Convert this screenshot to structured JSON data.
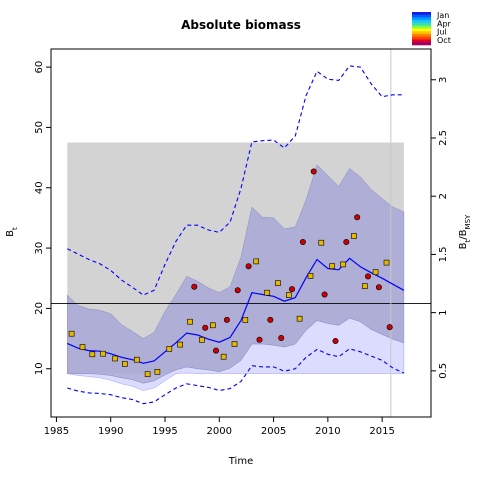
{
  "chart_data": {
    "type": "line",
    "title": "Absolute biomass",
    "xlabel": "Time",
    "ylabel": {
      "main": "B",
      "sub": "t"
    },
    "ylabel_right": {
      "b": "B",
      "bsub": "t",
      "sep": "/",
      "m": "B",
      "msub": "MSY"
    },
    "xlim": [
      1984.5,
      2019.5
    ],
    "ylim": [
      2,
      63
    ],
    "xticks": [
      1985,
      1990,
      1995,
      2000,
      2005,
      2010,
      2015
    ],
    "yticks": [
      10,
      20,
      30,
      40,
      50,
      60
    ],
    "right_ratio_per_unit": 19.3,
    "yticks_right": [
      0.5,
      1,
      1.5,
      2,
      2.5,
      3
    ],
    "bmsy_line": 20.8,
    "reference_vline": 2015.8,
    "gray_box": {
      "x": [
        1986,
        2017
      ],
      "y": [
        9.2,
        47.5
      ]
    },
    "legend": {
      "labels": [
        "Jan",
        "Apr",
        "Jul",
        "Oct"
      ],
      "colors": [
        "#1a1ae6",
        "#0060ff",
        "#00a0ff",
        "#20c8ff",
        "#40e0a0",
        "#80ff40",
        "#ffff00",
        "#ffc000",
        "#ff8000",
        "#ff4000",
        "#e00030",
        "#a00060"
      ]
    },
    "colors": {
      "median": "#0000ff",
      "ci_inner": "#a7a7d6",
      "ci_outer": "#dcdcff",
      "dashed": "#0000ff",
      "gray": "#d3d3d3",
      "square": "#e8b800",
      "circle": "#cc0000"
    },
    "series": [
      {
        "key": "median",
        "x": [
          1986,
          1987,
          1988,
          1989,
          1990,
          1991,
          1992,
          1993,
          1994,
          1995,
          1996,
          1997,
          1998,
          1999,
          2000,
          2001,
          2002,
          2003,
          2004,
          2005,
          2006,
          2007,
          2008,
          2009,
          2010,
          2011,
          2012,
          2013,
          2014,
          2015,
          2016,
          2017
        ],
        "values": [
          14.2,
          13.4,
          13.0,
          12.9,
          12.5,
          11.9,
          11.5,
          10.9,
          11.3,
          12.8,
          14.3,
          15.9,
          15.6,
          14.9,
          14.4,
          15.2,
          18.0,
          22.6,
          22.3,
          22.0,
          21.2,
          21.8,
          25.1,
          28.1,
          26.6,
          26.4,
          28.3,
          26.9,
          25.9,
          25.0,
          24.0,
          23.0
        ]
      },
      {
        "key": "ci_inner_upper",
        "x": [
          1986,
          1987,
          1988,
          1989,
          1990,
          1991,
          1992,
          1993,
          1994,
          1995,
          1996,
          1997,
          1998,
          1999,
          2000,
          2001,
          2002,
          2003,
          2004,
          2005,
          2006,
          2007,
          2008,
          2009,
          2010,
          2011,
          2012,
          2013,
          2014,
          2015,
          2016,
          2017
        ],
        "values": [
          22.2,
          20.5,
          19.9,
          19.7,
          19.1,
          17.3,
          16.2,
          15.0,
          16.0,
          19.5,
          22.3,
          25.3,
          24.5,
          23.4,
          22.6,
          23.6,
          28.5,
          36.8,
          35.1,
          35.0,
          33.2,
          33.5,
          38.0,
          43.8,
          42.0,
          40.2,
          43.2,
          41.8,
          39.7,
          38.2,
          36.8,
          36.0
        ]
      },
      {
        "key": "ci_inner_lower",
        "x": [
          1986,
          1987,
          1988,
          1989,
          1990,
          1991,
          1992,
          1993,
          1994,
          1995,
          1996,
          1997,
          1998,
          1999,
          2000,
          2001,
          2002,
          2003,
          2004,
          2005,
          2006,
          2007,
          2008,
          2009,
          2010,
          2011,
          2012,
          2013,
          2014,
          2015,
          2016,
          2017
        ],
        "values": [
          9.2,
          9.2,
          9.2,
          9.1,
          8.9,
          8.5,
          8.2,
          7.6,
          8.0,
          9.0,
          9.8,
          10.3,
          10.0,
          9.8,
          9.5,
          10.1,
          11.4,
          14.1,
          14.1,
          13.9,
          13.6,
          14.1,
          16.4,
          18.0,
          17.5,
          17.2,
          18.4,
          17.8,
          16.5,
          15.7,
          14.9,
          14.3
        ]
      },
      {
        "key": "ci_outer_lower",
        "x": [
          1986,
          1987,
          1988,
          1989,
          1990,
          1991,
          1992,
          1993,
          1994,
          1995,
          1996,
          1997,
          1998,
          1999,
          2000,
          2001,
          2002,
          2003,
          2004,
          2005,
          2006,
          2007,
          2008,
          2009,
          2010,
          2011,
          2012,
          2013,
          2014,
          2015,
          2016,
          2017
        ],
        "values": [
          9.2,
          8.9,
          8.7,
          8.5,
          8.1,
          7.5,
          7.1,
          6.4,
          6.8,
          8.0,
          9.2,
          9.3,
          9.2,
          9.2,
          9.2,
          9.2,
          9.2,
          9.2,
          9.2,
          9.2,
          9.2,
          9.2,
          9.2,
          9.2,
          9.2,
          9.2,
          9.2,
          9.2,
          9.2,
          9.2,
          9.2,
          9.2
        ]
      },
      {
        "key": "dashed_upper",
        "x": [
          1986,
          1987,
          1988,
          1989,
          1990,
          1991,
          1992,
          1993,
          1994,
          1995,
          1996,
          1997,
          1998,
          1999,
          2000,
          2001,
          2002,
          2003,
          2004,
          2005,
          2006,
          2007,
          2008,
          2009,
          2010,
          2011,
          2012,
          2013,
          2014,
          2015,
          2016,
          2017
        ],
        "values": [
          29.9,
          29.0,
          28.1,
          27.4,
          26.3,
          24.7,
          23.5,
          22.2,
          23.0,
          27.3,
          31.1,
          33.8,
          33.8,
          33.0,
          32.6,
          34.3,
          39.9,
          47.6,
          47.8,
          47.9,
          46.6,
          48.6,
          55.3,
          59.3,
          58.0,
          57.8,
          60.2,
          60.0,
          57.2,
          55.1,
          55.4,
          55.4
        ]
      },
      {
        "key": "dashed_lower",
        "x": [
          1986,
          1987,
          1988,
          1989,
          1990,
          1991,
          1992,
          1993,
          1994,
          1995,
          1996,
          1997,
          1998,
          1999,
          2000,
          2001,
          2002,
          2003,
          2004,
          2005,
          2006,
          2007,
          2008,
          2009,
          2010,
          2011,
          2012,
          2013,
          2014,
          2015,
          2016,
          2017
        ],
        "values": [
          6.8,
          6.3,
          6.0,
          5.9,
          5.7,
          5.2,
          4.9,
          4.2,
          4.5,
          5.7,
          6.8,
          7.5,
          7.2,
          6.9,
          6.4,
          6.7,
          7.9,
          10.5,
          10.3,
          10.3,
          9.6,
          10.0,
          11.9,
          13.2,
          12.4,
          12.0,
          13.3,
          12.8,
          12.1,
          11.4,
          10.1,
          9.3
        ]
      }
    ],
    "observations": [
      {
        "name": "squares",
        "x": [
          1986.4,
          1987.4,
          1988.3,
          1989.3,
          1990.4,
          1991.3,
          1992.4,
          1993.4,
          1994.3,
          1995.4,
          1996.4,
          1997.3,
          1998.4,
          1999.4,
          2000.4,
          2001.4,
          2002.4,
          2003.4,
          2004.4,
          2005.4,
          2006.4,
          2007.4,
          2008.4,
          2009.4,
          2010.4,
          2011.4,
          2012.4,
          2013.4,
          2014.4,
          2015.4
        ],
        "values": [
          15.8,
          13.6,
          12.4,
          12.5,
          11.7,
          10.8,
          11.5,
          9.1,
          9.5,
          13.3,
          14.0,
          17.8,
          14.8,
          17.2,
          12.0,
          14.1,
          18.1,
          27.8,
          22.6,
          24.2,
          22.2,
          18.3,
          25.4,
          30.9,
          27.0,
          27.3,
          32.0,
          23.7,
          26.0,
          27.6
        ]
      },
      {
        "name": "circles",
        "x": [
          1997.7,
          1998.7,
          1999.7,
          2000.7,
          2001.7,
          2002.7,
          2003.7,
          2004.7,
          2005.7,
          2006.7,
          2007.7,
          2008.7,
          2009.7,
          2010.7,
          2011.7,
          2012.7,
          2013.7,
          2014.7,
          2015.7
        ],
        "values": [
          23.6,
          16.8,
          13.0,
          18.1,
          23.0,
          27.0,
          14.8,
          18.1,
          15.1,
          23.2,
          31.0,
          42.7,
          22.3,
          14.6,
          31.0,
          35.1,
          25.3,
          23.5,
          16.9
        ]
      }
    ]
  }
}
